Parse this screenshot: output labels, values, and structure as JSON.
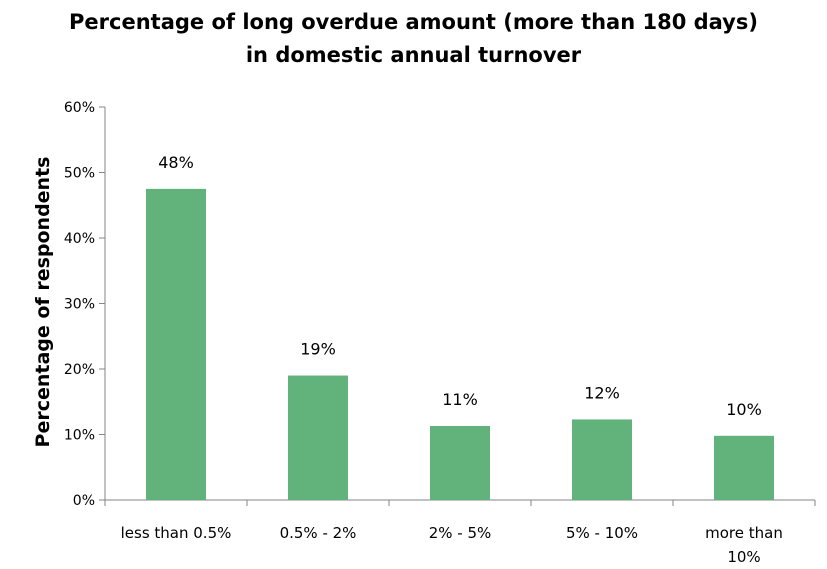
{
  "chart_data": {
    "type": "bar",
    "title_lines": [
      "Percentage of long overdue amount (more than 180 days)",
      "in domestic annual turnover"
    ],
    "xlabel": "",
    "ylabel": "Percentage of respondents",
    "categories": [
      "less than 0.5%",
      "0.5% - 2%",
      "2% - 5%",
      "5% - 10%",
      "more than 10%"
    ],
    "values": [
      48,
      19,
      11,
      12,
      10
    ],
    "plotted_values": [
      47.5,
      19,
      11.3,
      12.3,
      9.8
    ],
    "data_labels": [
      "48%",
      "19%",
      "11%",
      "12%",
      "10%"
    ],
    "yticks": [
      "0%",
      "10%",
      "20%",
      "30%",
      "40%",
      "50%",
      "60%"
    ],
    "ylim": [
      0,
      60
    ],
    "grid": false,
    "legend": "none",
    "bar_color": "#62b37b"
  }
}
